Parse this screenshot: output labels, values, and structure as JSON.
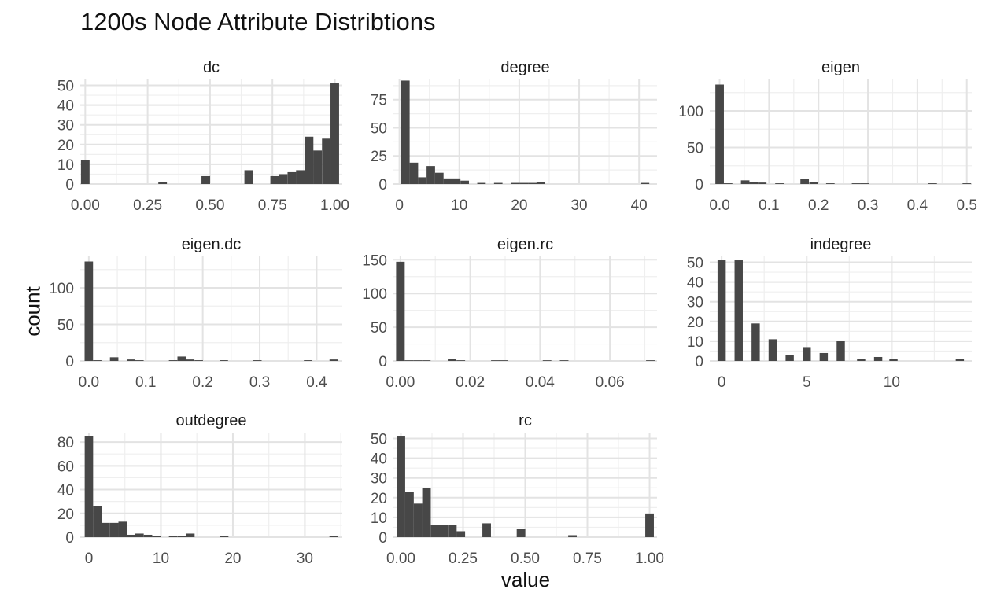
{
  "title": "1200s Node Attribute Distribtions",
  "chart_data": {
    "type": "bar",
    "title": "1200s Node Attribute Distribtions",
    "xlabel": "value",
    "ylabel": "count",
    "grid": true,
    "facets": [
      {
        "name": "dc",
        "xlim": [
          -0.02,
          1.03
        ],
        "ylim": [
          0,
          53
        ],
        "xticks": [
          0,
          0.25,
          0.5,
          0.75,
          1.0
        ],
        "xtick_labels": [
          "0.00",
          "0.25",
          "0.50",
          "0.75",
          "1.00"
        ],
        "yticks": [
          0,
          10,
          20,
          30,
          40,
          50
        ],
        "ytick_labels": [
          "0",
          "10",
          "20",
          "30",
          "40",
          "50"
        ],
        "bin_width": 0.0345,
        "bins": [
          {
            "x": 0.0,
            "count": 12
          },
          {
            "x": 0.31,
            "count": 1
          },
          {
            "x": 0.483,
            "count": 4
          },
          {
            "x": 0.655,
            "count": 7
          },
          {
            "x": 0.759,
            "count": 4
          },
          {
            "x": 0.793,
            "count": 5
          },
          {
            "x": 0.828,
            "count": 6
          },
          {
            "x": 0.862,
            "count": 7
          },
          {
            "x": 0.897,
            "count": 24
          },
          {
            "x": 0.931,
            "count": 17
          },
          {
            "x": 0.966,
            "count": 23
          },
          {
            "x": 1.0,
            "count": 51
          }
        ]
      },
      {
        "name": "degree",
        "xlim": [
          -1,
          43
        ],
        "ylim": [
          0,
          93
        ],
        "xticks": [
          0,
          10,
          20,
          30,
          40
        ],
        "xtick_labels": [
          "0",
          "10",
          "20",
          "30",
          "40"
        ],
        "yticks": [
          0,
          25,
          50,
          75
        ],
        "ytick_labels": [
          "0",
          "25",
          "50",
          "75"
        ],
        "bin_width": 1.414,
        "bins": [
          {
            "x": 1.0,
            "count": 92
          },
          {
            "x": 2.414,
            "count": 19
          },
          {
            "x": 3.828,
            "count": 6
          },
          {
            "x": 5.24,
            "count": 16
          },
          {
            "x": 6.66,
            "count": 10
          },
          {
            "x": 8.07,
            "count": 5
          },
          {
            "x": 9.48,
            "count": 5
          },
          {
            "x": 10.9,
            "count": 3
          },
          {
            "x": 13.7,
            "count": 1
          },
          {
            "x": 16.5,
            "count": 1
          },
          {
            "x": 19.4,
            "count": 1
          },
          {
            "x": 20.8,
            "count": 1
          },
          {
            "x": 22.2,
            "count": 1
          },
          {
            "x": 23.6,
            "count": 2
          },
          {
            "x": 41.0,
            "count": 1
          }
        ]
      },
      {
        "name": "eigen",
        "xlim": [
          -0.02,
          0.51
        ],
        "ylim": [
          0,
          143
        ],
        "xticks": [
          0,
          0.1,
          0.2,
          0.3,
          0.4,
          0.5
        ],
        "xtick_labels": [
          "0.0",
          "0.1",
          "0.2",
          "0.3",
          "0.4",
          "0.5"
        ],
        "yticks": [
          0,
          50,
          100
        ],
        "ytick_labels": [
          "0",
          "50",
          "100"
        ],
        "bin_width": 0.0172,
        "bins": [
          {
            "x": 0.0,
            "count": 136
          },
          {
            "x": 0.0172,
            "count": 1
          },
          {
            "x": 0.0517,
            "count": 5
          },
          {
            "x": 0.069,
            "count": 3
          },
          {
            "x": 0.0862,
            "count": 2
          },
          {
            "x": 0.121,
            "count": 1
          },
          {
            "x": 0.172,
            "count": 7
          },
          {
            "x": 0.19,
            "count": 3
          },
          {
            "x": 0.224,
            "count": 1
          },
          {
            "x": 0.276,
            "count": 1
          },
          {
            "x": 0.293,
            "count": 1
          },
          {
            "x": 0.431,
            "count": 1
          },
          {
            "x": 0.5,
            "count": 1
          }
        ]
      },
      {
        "name": "eigen.dc",
        "xlim": [
          -0.015,
          0.445
        ],
        "ylim": [
          0,
          143
        ],
        "xticks": [
          0,
          0.1,
          0.2,
          0.3,
          0.4
        ],
        "xtick_labels": [
          "0.0",
          "0.1",
          "0.2",
          "0.3",
          "0.4"
        ],
        "yticks": [
          0,
          50,
          100
        ],
        "ytick_labels": [
          "0",
          "50",
          "100"
        ],
        "bin_width": 0.0148,
        "bins": [
          {
            "x": 0.0,
            "count": 136
          },
          {
            "x": 0.0148,
            "count": 1
          },
          {
            "x": 0.0445,
            "count": 5
          },
          {
            "x": 0.0741,
            "count": 2
          },
          {
            "x": 0.0889,
            "count": 1
          },
          {
            "x": 0.148,
            "count": 1
          },
          {
            "x": 0.163,
            "count": 6
          },
          {
            "x": 0.178,
            "count": 2
          },
          {
            "x": 0.193,
            "count": 1
          },
          {
            "x": 0.237,
            "count": 1
          },
          {
            "x": 0.296,
            "count": 1
          },
          {
            "x": 0.385,
            "count": 1
          },
          {
            "x": 0.43,
            "count": 2
          }
        ]
      },
      {
        "name": "eigen.rc",
        "xlim": [
          -0.002,
          0.0735
        ],
        "ylim": [
          0,
          155
        ],
        "xticks": [
          0,
          0.02,
          0.04,
          0.06
        ],
        "xtick_labels": [
          "0.00",
          "0.02",
          "0.04",
          "0.06"
        ],
        "yticks": [
          0,
          50,
          100,
          150
        ],
        "ytick_labels": [
          "0",
          "50",
          "100",
          "150"
        ],
        "bin_width": 0.00247,
        "bins": [
          {
            "x": 0.0,
            "count": 147
          },
          {
            "x": 0.00247,
            "count": 1
          },
          {
            "x": 0.00494,
            "count": 1
          },
          {
            "x": 0.00741,
            "count": 1
          },
          {
            "x": 0.0148,
            "count": 3
          },
          {
            "x": 0.0173,
            "count": 1
          },
          {
            "x": 0.0272,
            "count": 1
          },
          {
            "x": 0.0296,
            "count": 1
          },
          {
            "x": 0.042,
            "count": 1
          },
          {
            "x": 0.0469,
            "count": 1
          },
          {
            "x": 0.0716,
            "count": 1
          }
        ]
      },
      {
        "name": "indegree",
        "xlim": [
          -0.7,
          14.7
        ],
        "ylim": [
          0,
          53
        ],
        "xticks": [
          0,
          5,
          10
        ],
        "xtick_labels": [
          "0",
          "5",
          "10"
        ],
        "yticks": [
          0,
          10,
          20,
          30,
          40,
          50
        ],
        "ytick_labels": [
          "0",
          "10",
          "20",
          "30",
          "40",
          "50"
        ],
        "bin_width": 0.483,
        "bins": [
          {
            "x": 0,
            "count": 51
          },
          {
            "x": 1,
            "count": 51
          },
          {
            "x": 2,
            "count": 19
          },
          {
            "x": 3,
            "count": 11
          },
          {
            "x": 4,
            "count": 3
          },
          {
            "x": 5,
            "count": 7
          },
          {
            "x": 6,
            "count": 4
          },
          {
            "x": 7,
            "count": 10
          },
          {
            "x": 8.2,
            "count": 1
          },
          {
            "x": 9.2,
            "count": 2
          },
          {
            "x": 10.1,
            "count": 1
          },
          {
            "x": 14,
            "count": 1
          }
        ]
      },
      {
        "name": "outdegree",
        "xlim": [
          -1.2,
          35.2
        ],
        "ylim": [
          0,
          88
        ],
        "xticks": [
          0,
          10,
          20,
          30
        ],
        "xtick_labels": [
          "0",
          "10",
          "20",
          "30"
        ],
        "yticks": [
          0,
          20,
          40,
          60,
          80
        ],
        "ytick_labels": [
          "0",
          "20",
          "40",
          "60",
          "80"
        ],
        "bin_width": 1.17,
        "bins": [
          {
            "x": 0,
            "count": 85
          },
          {
            "x": 1.17,
            "count": 26
          },
          {
            "x": 2.34,
            "count": 12
          },
          {
            "x": 3.52,
            "count": 12
          },
          {
            "x": 4.69,
            "count": 13
          },
          {
            "x": 5.86,
            "count": 2
          },
          {
            "x": 7.03,
            "count": 3
          },
          {
            "x": 8.21,
            "count": 2
          },
          {
            "x": 9.38,
            "count": 1
          },
          {
            "x": 11.7,
            "count": 1
          },
          {
            "x": 12.9,
            "count": 1
          },
          {
            "x": 14.1,
            "count": 3
          },
          {
            "x": 18.8,
            "count": 1
          },
          {
            "x": 34.0,
            "count": 1
          }
        ]
      },
      {
        "name": "rc",
        "xlim": [
          -0.03,
          1.03
        ],
        "ylim": [
          0,
          53
        ],
        "xticks": [
          0,
          0.25,
          0.5,
          0.75,
          1.0
        ],
        "xtick_labels": [
          "0.00",
          "0.25",
          "0.50",
          "0.75",
          "1.00"
        ],
        "yticks": [
          0,
          10,
          20,
          30,
          40,
          50
        ],
        "ytick_labels": [
          "0",
          "10",
          "20",
          "30",
          "40",
          "50"
        ],
        "bin_width": 0.0345,
        "bins": [
          {
            "x": 0.0,
            "count": 51
          },
          {
            "x": 0.0345,
            "count": 23
          },
          {
            "x": 0.069,
            "count": 17
          },
          {
            "x": 0.103,
            "count": 25
          },
          {
            "x": 0.138,
            "count": 6
          },
          {
            "x": 0.172,
            "count": 6
          },
          {
            "x": 0.207,
            "count": 6
          },
          {
            "x": 0.241,
            "count": 3
          },
          {
            "x": 0.345,
            "count": 7
          },
          {
            "x": 0.483,
            "count": 4
          },
          {
            "x": 0.69,
            "count": 1
          },
          {
            "x": 1.0,
            "count": 12
          }
        ]
      }
    ]
  }
}
